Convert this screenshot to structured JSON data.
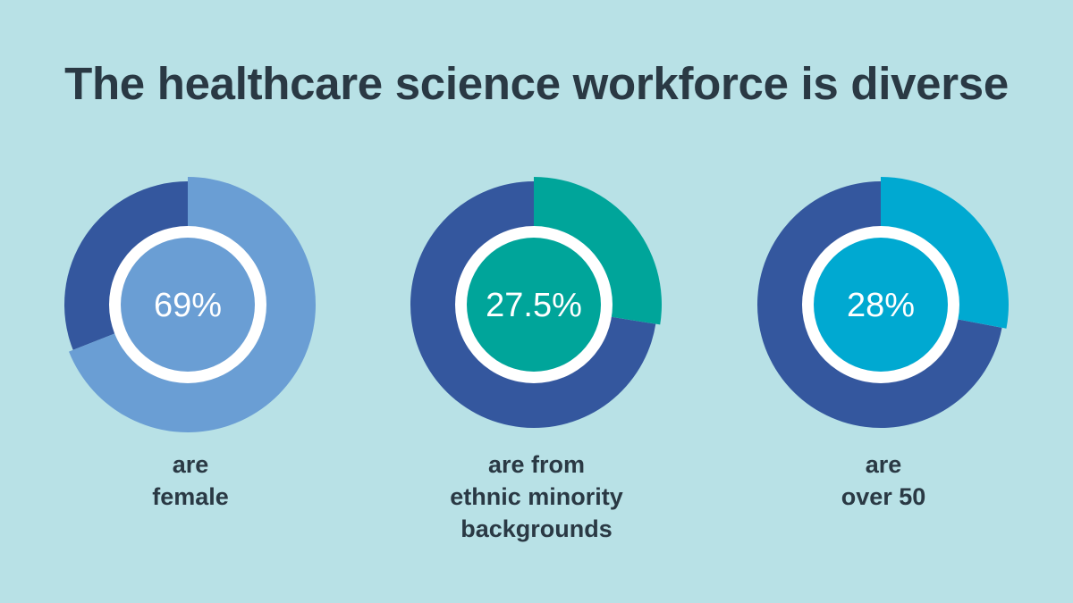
{
  "title": "The healthcare science workforce is diverse",
  "colors": {
    "background": "#b8e1e6",
    "remainder": "#34579e",
    "text": "#2a3944",
    "ring_gap": "#ffffff"
  },
  "chart_data": [
    {
      "type": "pie",
      "value": 69,
      "label": "69%",
      "caption": [
        "are",
        "female"
      ],
      "color": "#6a9ed4",
      "remainder_color": "#34579e"
    },
    {
      "type": "pie",
      "value": 27.5,
      "label": "27.5%",
      "caption": [
        "are from",
        "ethnic minority",
        "backgrounds"
      ],
      "color": "#00a59a",
      "remainder_color": "#34579e"
    },
    {
      "type": "pie",
      "value": 28,
      "label": "28%",
      "caption": [
        "are",
        "over 50"
      ],
      "color": "#00a9d1",
      "remainder_color": "#34579e"
    }
  ]
}
